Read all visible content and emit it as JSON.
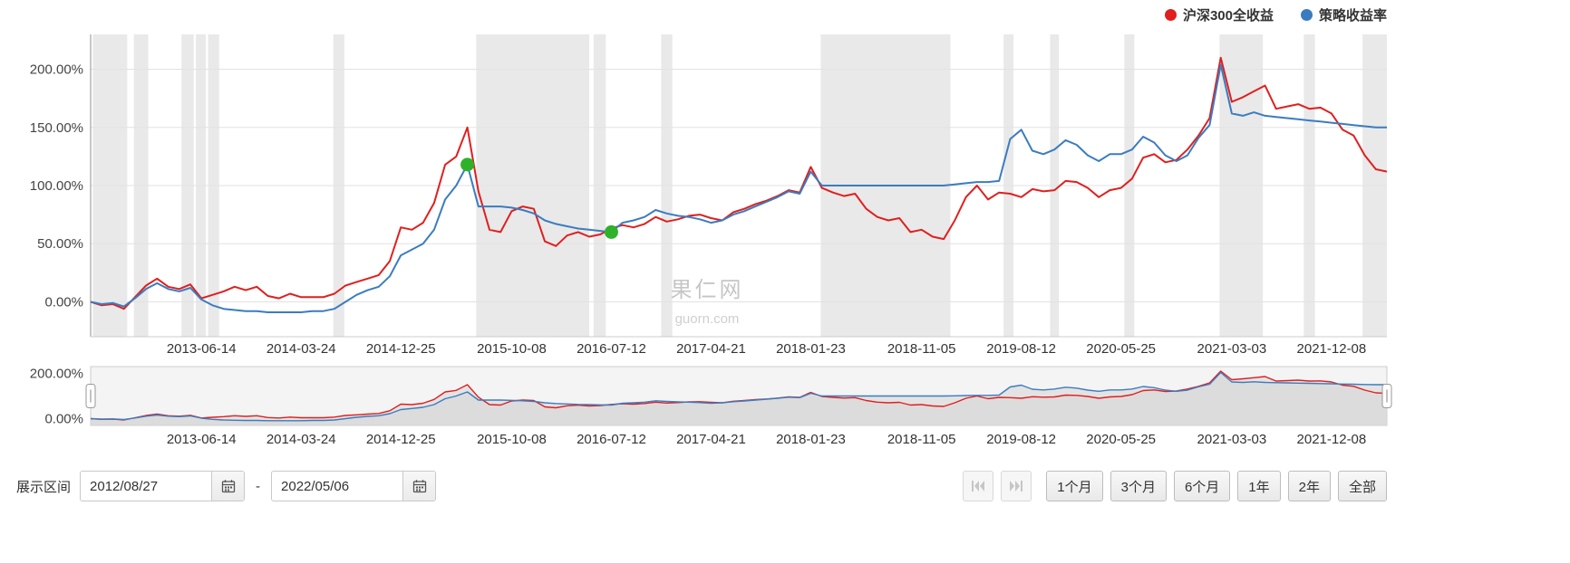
{
  "legend": {
    "series": [
      {
        "label": "沪深300全收益",
        "color": "#e01f1f"
      },
      {
        "label": "策略收益率",
        "color": "#3b7cc0"
      }
    ]
  },
  "watermark": {
    "title": "果仁网",
    "subtitle": "guorn.com"
  },
  "controls": {
    "range_label": "展示区间",
    "separator": "-",
    "start_date": "2012/08/27",
    "end_date": "2022/05/06",
    "range_buttons": [
      "1个月",
      "3个月",
      "6个月",
      "1年",
      "2年",
      "全部"
    ]
  },
  "chart_data": {
    "type": "line",
    "unit": "percent",
    "title": "",
    "x_range": [
      "2012/08/27",
      "2022/05/06"
    ],
    "x_tick_labels": [
      "2013-06-14",
      "2014-03-24",
      "2014-12-25",
      "2015-10-08",
      "2016-07-12",
      "2017-04-21",
      "2018-01-23",
      "2018-11-05",
      "2019-08-12",
      "2020-05-25",
      "2021-03-03",
      "2021-12-08"
    ],
    "x_tick_indices": [
      10,
      19,
      28,
      38,
      47,
      56,
      65,
      75,
      84,
      93,
      103,
      112
    ],
    "y_ticks_main": {
      "labels": [
        "200.00%",
        "150.00%",
        "100.00%",
        "50.00%",
        "0.00%"
      ],
      "values": [
        200,
        150,
        100,
        50,
        0
      ]
    },
    "y_ticks_nav": {
      "labels": [
        "200.00%",
        "0.00%"
      ],
      "values": [
        200,
        0
      ]
    },
    "ylim": [
      -30,
      230
    ],
    "grid_color": "#e2e2e2",
    "band_color": "#e4e4e4",
    "series": [
      {
        "name": "沪深300全收益",
        "color": "#e01f1f",
        "values": [
          0,
          -3,
          -2,
          -6,
          4,
          14,
          20,
          13,
          11,
          15,
          3,
          6,
          9,
          13,
          10,
          13,
          5,
          3,
          7,
          4,
          4,
          4,
          7,
          14,
          17,
          20,
          23,
          35,
          64,
          62,
          68,
          85,
          118,
          125,
          150,
          95,
          62,
          60,
          78,
          82,
          80,
          52,
          48,
          57,
          60,
          56,
          58,
          63,
          66,
          64,
          67,
          73,
          69,
          71,
          74,
          75,
          72,
          70,
          77,
          80,
          84,
          87,
          91,
          96,
          94,
          116,
          98,
          94,
          91,
          93,
          80,
          73,
          70,
          72,
          60,
          62,
          56,
          54,
          70,
          90,
          100,
          88,
          94,
          93,
          90,
          97,
          95,
          96,
          104,
          103,
          98,
          90,
          96,
          98,
          106,
          124,
          127,
          120,
          122,
          131,
          143,
          158,
          210,
          172,
          176,
          181,
          186,
          166,
          168,
          170,
          166,
          167,
          162,
          148,
          143,
          126,
          114,
          112
        ]
      },
      {
        "name": "策略收益率",
        "color": "#3b7cc0",
        "values": [
          0,
          -2,
          -1,
          -4,
          3,
          11,
          16,
          11,
          9,
          12,
          2,
          -3,
          -6,
          -7,
          -8,
          -8,
          -9,
          -9,
          -9,
          -9,
          -8,
          -8,
          -6,
          0,
          6,
          10,
          13,
          22,
          40,
          45,
          50,
          62,
          88,
          100,
          118,
          82,
          82,
          82,
          81,
          79,
          76,
          70,
          67,
          65,
          63,
          62,
          61,
          60,
          68,
          70,
          73,
          79,
          76,
          74,
          73,
          71,
          68,
          70,
          75,
          78,
          82,
          86,
          90,
          95,
          93,
          112,
          100,
          100,
          100,
          100,
          100,
          100,
          100,
          100,
          100,
          100,
          100,
          100,
          101,
          102,
          103,
          103,
          104,
          140,
          148,
          130,
          127,
          131,
          139,
          135,
          126,
          121,
          127,
          127,
          131,
          142,
          137,
          126,
          121,
          126,
          141,
          152,
          204,
          162,
          160,
          163,
          160,
          159,
          158,
          157,
          156,
          155,
          154,
          153,
          152,
          151,
          150,
          150
        ]
      }
    ],
    "markers": [
      {
        "series": "策略收益率",
        "index": 34,
        "value": 118,
        "color": "#2eb229"
      },
      {
        "series": "策略收益率",
        "index": 47,
        "value": 60,
        "color": "#2eb229"
      }
    ],
    "bands": [
      [
        0.2,
        3.3
      ],
      [
        3.9,
        5.2
      ],
      [
        8.2,
        9.3
      ],
      [
        9.5,
        10.4
      ],
      [
        10.6,
        11.6
      ],
      [
        21.9,
        22.9
      ],
      [
        34.8,
        45.0
      ],
      [
        45.4,
        46.5
      ],
      [
        51.5,
        52.5
      ],
      [
        65.9,
        77.6
      ],
      [
        82.4,
        83.3
      ],
      [
        86.6,
        87.4
      ],
      [
        93.3,
        94.2
      ],
      [
        101.9,
        105.8
      ],
      [
        109.5,
        110.5
      ],
      [
        114.8,
        117
      ]
    ]
  }
}
